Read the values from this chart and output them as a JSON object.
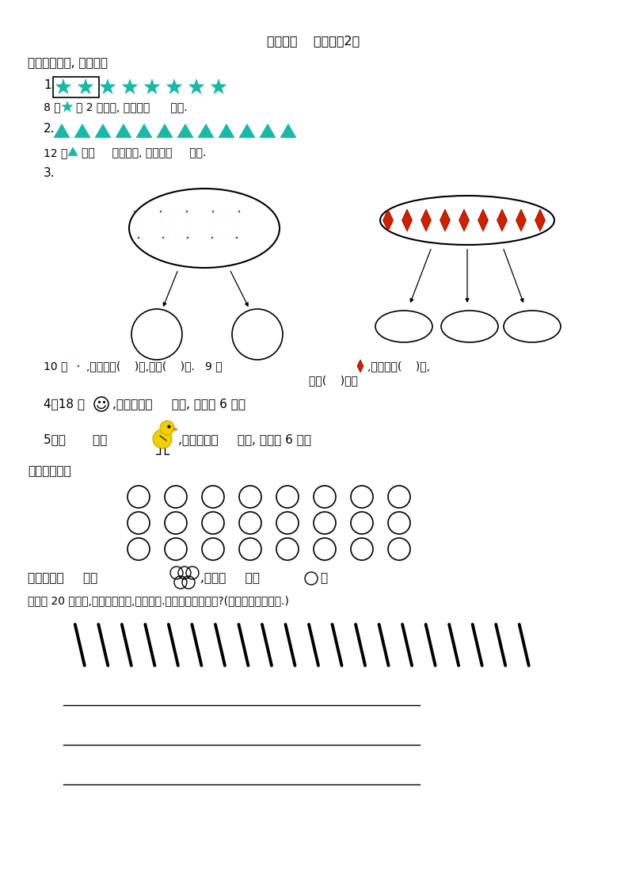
{
  "title": "第二课时    平均分（2）",
  "section1_label": "一、先圈一圈, 再填空。",
  "section2_label": "二、圈一圈。",
  "section3_label": "三、拿 20 根小棒,每几根分一份,正好分完.有几种不同的分法?(请画出不同的分法.)",
  "q1_line": "8 个    每 2 个一份, 分成了（      ）份.",
  "q2_line": "12 个    每（     ）个一份, 分成了（     ）份.",
  "q3_left_bottom": "10 个   ,平均分成(    )份,每份(    )个.",
  "q3_right_bottom1": "9 个   ,平均分成(    )份,",
  "q3_right_bottom2": "每份(    )个。",
  "q4_line": "4、18 个   ,平均分成（     ）份, 每份是 6 个。",
  "q5_line": "5、（       ）只       ,平均分成（     ）份, 每份是 6 个。",
  "q2b_line": "可以组成（     ）个   ,还剩（     ）个   。",
  "bg_color": "#ffffff",
  "star_color": "#1ab8a8",
  "triangle_color": "#1ab8a8",
  "heart_color": "#cc2200",
  "diamond_color": "#cc2200",
  "text_color": "#000000"
}
